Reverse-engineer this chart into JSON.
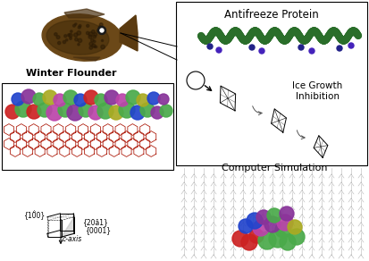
{
  "bg_color": "#ffffff",
  "fig_width": 4.13,
  "fig_height": 2.92,
  "dpi": 100,
  "panel_top_right": {
    "title": "Antifreeze Protein",
    "title_fontsize": 8.5,
    "label_ice": "Ice Growth\nInhibition",
    "label_ice_fontsize": 7.5
  },
  "panel_bottom_right": {
    "label": "Computer Simulation",
    "label_fontsize": 8
  },
  "label_winter_flounder": {
    "text": "Winter Flounder",
    "fontsize": 8
  },
  "crystal_labels": {
    "c_axis": "c-axis",
    "face1": "{10̐0}",
    "face2": "{0001}",
    "face3": "{20ȃ1}",
    "fontsize": 5.5
  },
  "helix_color": "#2a6e2a",
  "sphere_colors": {
    "green": "#4aaa4a",
    "red": "#cc2222",
    "blue": "#2244cc",
    "purple": "#883399",
    "yellow": "#aaaa22",
    "magenta": "#bb44aa"
  }
}
